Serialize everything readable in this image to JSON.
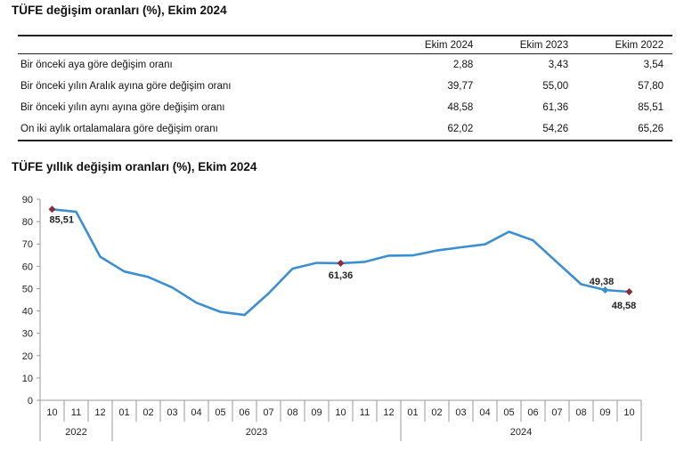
{
  "table": {
    "title": "TÜFE değişim oranları (%), Ekim 2024",
    "columns": [
      "",
      "Ekim 2024",
      "Ekim 2023",
      "Ekim 2022"
    ],
    "rows": [
      {
        "label": "Bir önceki aya göre değişim oranı",
        "values": [
          "2,88",
          "3,43",
          "3,54"
        ]
      },
      {
        "label": "Bir önceki yılın Aralık ayına göre değişim oranı",
        "values": [
          "39,77",
          "55,00",
          "57,80"
        ]
      },
      {
        "label": "Bir önceki yılın aynı ayına göre değişim oranı",
        "values": [
          "48,58",
          "61,36",
          "85,51"
        ]
      },
      {
        "label": "On iki aylık ortalamalara göre değişim oranı",
        "values": [
          "62,02",
          "54,26",
          "65,26"
        ]
      }
    ]
  },
  "chart_data": {
    "type": "line",
    "title": "TÜFE yıllık değişim oranları (%), Ekim 2024",
    "categories": [
      "10",
      "11",
      "12",
      "01",
      "02",
      "03",
      "04",
      "05",
      "06",
      "07",
      "08",
      "09",
      "10",
      "11",
      "12",
      "01",
      "02",
      "03",
      "04",
      "05",
      "06",
      "07",
      "08",
      "09",
      "10"
    ],
    "years": [
      {
        "label": "2022",
        "start": 0,
        "end": 2
      },
      {
        "label": "2023",
        "start": 3,
        "end": 14
      },
      {
        "label": "2024",
        "start": 15,
        "end": 24
      }
    ],
    "series": [
      {
        "values": [
          85.51,
          84.39,
          64.27,
          57.68,
          55.18,
          50.51,
          43.68,
          39.59,
          38.21,
          47.83,
          58.94,
          61.53,
          61.36,
          61.98,
          64.77,
          64.86,
          67.07,
          68.5,
          69.8,
          75.45,
          71.6,
          61.78,
          51.97,
          49.38,
          48.58
        ]
      }
    ],
    "ylim": [
      0,
      90
    ],
    "yticks": [
      0,
      10,
      20,
      30,
      40,
      50,
      60,
      70,
      80,
      90
    ],
    "grid": false,
    "line_color": "#3b8fd0",
    "marker_color": "#8b2b3c",
    "annotations": [
      {
        "index": 0,
        "label": "85,51",
        "marker": true
      },
      {
        "index": 12,
        "label": "61,36",
        "marker": true
      },
      {
        "index": 23,
        "label": "49,38",
        "marker": false
      },
      {
        "index": 24,
        "label": "48,58",
        "marker": true
      }
    ]
  }
}
